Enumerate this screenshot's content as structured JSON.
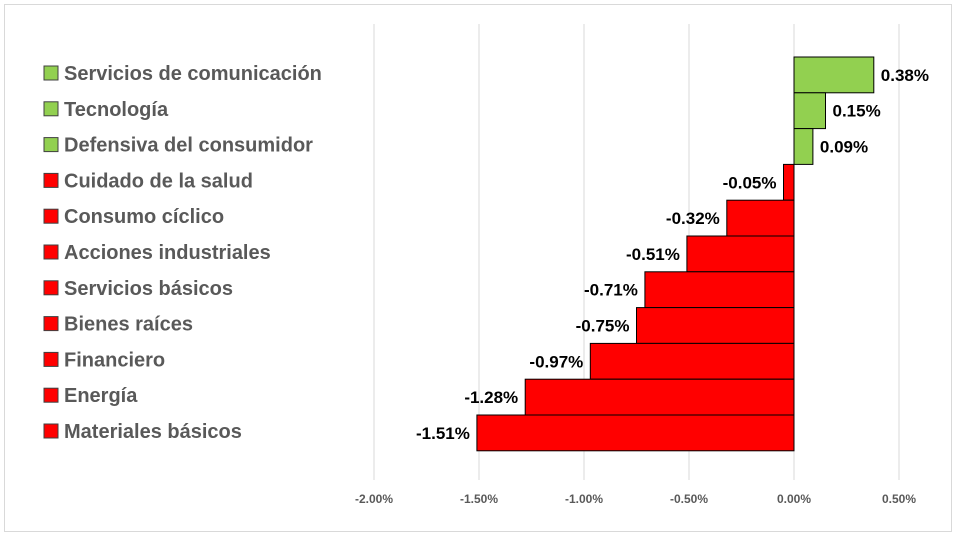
{
  "chart_data": {
    "type": "bar",
    "orientation": "horizontal",
    "categories": [
      "Servicios de comunicación",
      "Tecnología",
      "Defensiva del consumidor",
      "Cuidado de la salud",
      "Consumo cíclico",
      "Acciones industriales",
      "Servicios básicos",
      "Bienes raíces",
      "Financiero",
      "Energía",
      "Materiales básicos"
    ],
    "values": [
      0.38,
      0.15,
      0.09,
      -0.05,
      -0.32,
      -0.51,
      -0.71,
      -0.75,
      -0.97,
      -1.28,
      -1.51
    ],
    "value_labels": [
      "0.38%",
      "0.15%",
      "0.09%",
      "-0.05%",
      "-0.32%",
      "-0.51%",
      "-0.71%",
      "-0.75%",
      "-0.97%",
      "-1.28%",
      "-1.51%"
    ],
    "x_ticks": [
      -2.0,
      -1.5,
      -1.0,
      -0.5,
      0.0,
      0.5
    ],
    "x_tick_labels": [
      "-2.00%",
      "-1.50%",
      "-1.00%",
      "-0.50%",
      "0.00%",
      "0.50%"
    ],
    "xlim": [
      -2.0,
      0.5
    ],
    "grid": "vertical",
    "legend_position": "left",
    "title": "",
    "xlabel": "",
    "ylabel": "",
    "colors": {
      "positive": "#92d050",
      "negative": "#ff0000",
      "bar_border": "#000000",
      "grid": "#d9d9d9"
    }
  }
}
